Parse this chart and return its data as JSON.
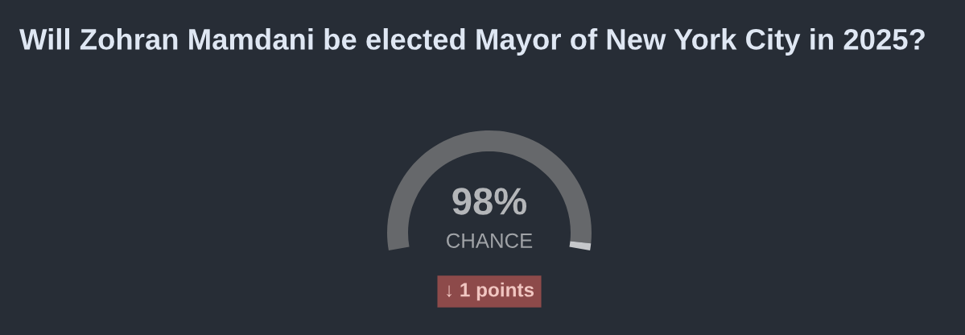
{
  "chart_data": {
    "type": "donut",
    "title": "Will Zohran Mamdani be elected Mayor of New York City in 2025?",
    "categories": [
      null,
      null
    ],
    "values": [
      98,
      2
    ],
    "colors": [
      "#66686b",
      "#c6c8cb"
    ],
    "annotations": [
      "98%",
      "CHANCE",
      "↓ 1 points"
    ]
  }
}
